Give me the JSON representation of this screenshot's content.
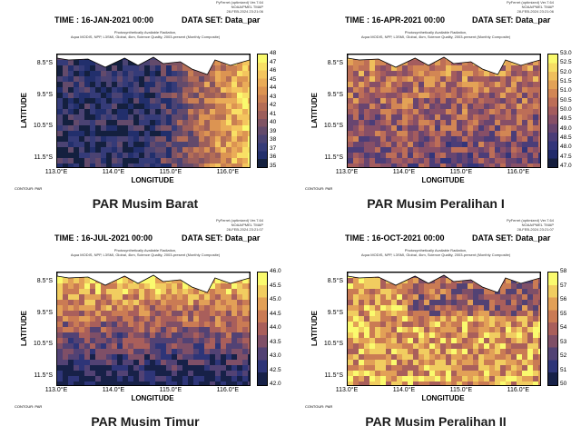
{
  "header_small": "PyFerret (optimized) Ver.7.64\nNOAA/PMEL TMAP",
  "common": {
    "description": "Photosynthetically Available Radiation,\nAqua MODIS, NPP, L3SMI, Global, 4km, Science Quality, 2003-present (Monthly Composite)",
    "dataset_label": "DATA SET: Data_par",
    "xlabel": "LONGITUDE",
    "ylabel": "LATITUDE",
    "contour_note": "CONTOUR: PAR",
    "yticks": [
      "8.5°S",
      "9.5°S",
      "10.5°S",
      "11.5°S"
    ],
    "xticks": [
      "113.0°E",
      "114.0°E",
      "115.0°E",
      "116.0°E"
    ]
  },
  "panels": [
    {
      "id": "jan",
      "time": "TIME : 16-JAN-2021 00:00",
      "stamp": "28-FEB-2024 23:21:06",
      "caption": "PAR Musim Barat",
      "cbar_ticks": [
        "48",
        "47",
        "46",
        "45",
        "44",
        "43",
        "42",
        "41",
        "40",
        "39",
        "38",
        "37",
        "36",
        "35"
      ],
      "palette": [
        "#fafa6e",
        "#f9e065",
        "#f4c55e",
        "#eaac58",
        "#dc9452",
        "#c97f53",
        "#b46d56",
        "#9c5e5b",
        "#7f5363",
        "#634a6b",
        "#4b4373",
        "#353b78",
        "#222f6c",
        "#14203f"
      ]
    },
    {
      "id": "apr",
      "time": "TIME : 16-APR-2021 00:00",
      "stamp": "28-FEB-2024 23:21:06",
      "caption": "PAR Musim Peralihan I",
      "cbar_ticks": [
        "53.0",
        "52.5",
        "52.0",
        "51.5",
        "51.0",
        "50.5",
        "50.0",
        "49.5",
        "49.0",
        "48.5",
        "48.0",
        "47.5",
        "47.0"
      ],
      "palette": [
        "#fafa6e",
        "#f6dd64",
        "#efbf5c",
        "#e3a256",
        "#d28654",
        "#bd6e57",
        "#a45c5e",
        "#874f67",
        "#684570",
        "#4b3d78",
        "#33357a",
        "#202a6a",
        "#141d3d"
      ]
    },
    {
      "id": "jul",
      "time": "TIME : 16-JUL-2021 00:00",
      "stamp": "28-FEB-2024 23:21:07",
      "caption": "PAR Musim Timur",
      "cbar_ticks": [
        "46.0",
        "45.5",
        "45.0",
        "44.5",
        "44.0",
        "43.5",
        "43.0",
        "42.5",
        "42.0"
      ],
      "palette": [
        "#fafa6e",
        "#f1cd60",
        "#e2a057",
        "#ca7b54",
        "#a95f5b",
        "#7f4f67",
        "#524274",
        "#2e3578",
        "#172148"
      ]
    },
    {
      "id": "oct",
      "time": "TIME : 16-OCT-2021 00:00",
      "stamp": "28-FEB-2024 23:21:07",
      "caption": "PAR Musim Peralihan II",
      "cbar_ticks": [
        "58",
        "57",
        "56",
        "55",
        "54",
        "53",
        "52",
        "51",
        "50"
      ],
      "palette": [
        "#fafa6e",
        "#f1cd60",
        "#e2a057",
        "#ca7b54",
        "#a95f5b",
        "#7f4f67",
        "#524274",
        "#2e3578",
        "#172148"
      ]
    }
  ],
  "chart_data": [
    {
      "type": "heatmap",
      "title": "PAR Musim Barat",
      "xlabel": "LONGITUDE",
      "ylabel": "LATITUDE",
      "xlim": [
        112.9,
        116.8
      ],
      "ylim": [
        -12.0,
        -8.0
      ],
      "color_range": [
        35,
        48
      ],
      "pattern": "low values west (~37-40), high values east (~45-48)"
    },
    {
      "type": "heatmap",
      "title": "PAR Musim Peralihan I",
      "xlabel": "LONGITUDE",
      "ylabel": "LATITUDE",
      "xlim": [
        112.9,
        116.8
      ],
      "ylim": [
        -12.0,
        -8.0
      ],
      "color_range": [
        47.0,
        53.0
      ],
      "pattern": "mostly 48-50, higher near coast in north"
    },
    {
      "type": "heatmap",
      "title": "PAR Musim Timur",
      "xlabel": "LONGITUDE",
      "ylabel": "LATITUDE",
      "xlim": [
        112.9,
        116.8
      ],
      "ylim": [
        -12.0,
        -8.0
      ],
      "color_range": [
        42.0,
        46.0
      ],
      "pattern": "high near northern coast (~45-46), low in south (~42-43)"
    },
    {
      "type": "heatmap",
      "title": "PAR Musim Peralihan II",
      "xlabel": "LONGITUDE",
      "ylabel": "LATITUDE",
      "xlim": [
        112.9,
        116.8
      ],
      "ylim": [
        -12.0,
        -8.0
      ],
      "color_range": [
        50,
        58
      ],
      "pattern": "mostly high (~55-57), lower patches near north coast"
    }
  ]
}
